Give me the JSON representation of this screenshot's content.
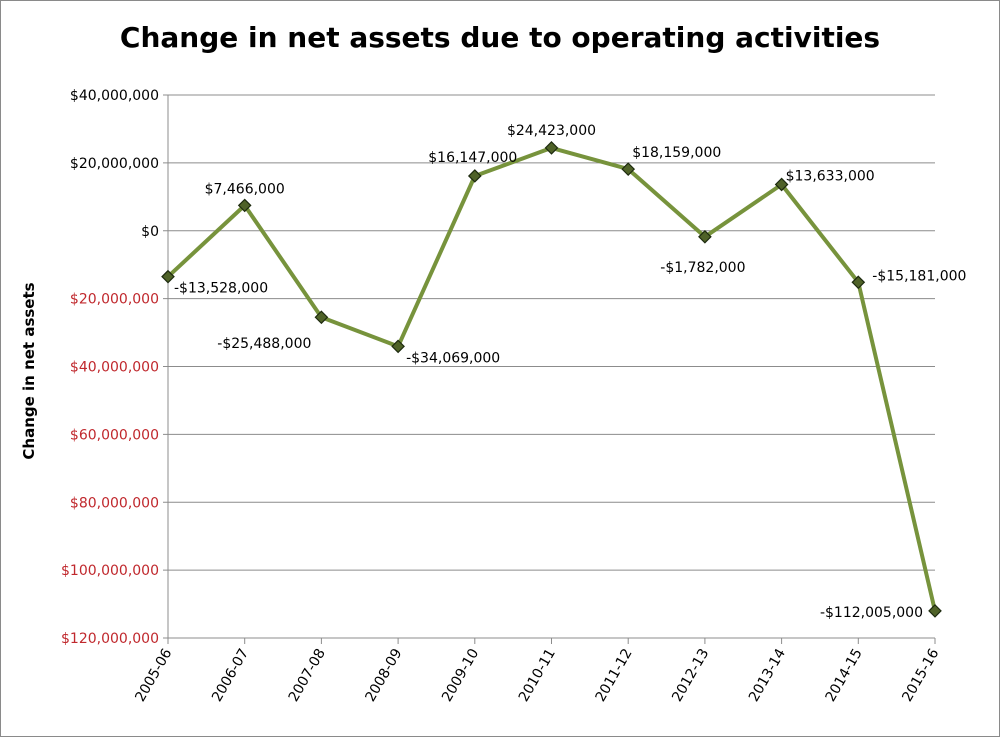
{
  "chart_data": {
    "type": "line",
    "title": "Change in net assets due to operating activities",
    "xlabel": "",
    "ylabel": "Change in net assets",
    "categories": [
      "2005-06",
      "2006-07",
      "2007-08",
      "2008-09",
      "2009-10",
      "2010-11",
      "2011-12",
      "2012-13",
      "2013-14",
      "2014-15",
      "2015-16"
    ],
    "series": [
      {
        "values": [
          -13528000,
          7466000,
          -25488000,
          -34069000,
          16147000,
          24423000,
          18159000,
          -1782000,
          13633000,
          -15181000,
          -112005000
        ],
        "data_labels": [
          "-$13,528,000",
          "$7,466,000",
          "-$25,488,000",
          "-$34,069,000",
          "$16,147,000",
          "$24,423,000",
          "$18,159,000",
          "-$1,782,000",
          "$13,633,000",
          "-$15,181,000",
          "-$112,005,000"
        ]
      }
    ],
    "ylim": [
      -120000000,
      40000000
    ],
    "y_ticks": [
      {
        "value": 40000000,
        "label": "$40,000,000",
        "color": "#000000"
      },
      {
        "value": 20000000,
        "label": "$20,000,000",
        "color": "#000000"
      },
      {
        "value": 0,
        "label": "$0",
        "color": "#000000"
      },
      {
        "value": -20000000,
        "label": "$20,000,000",
        "color": "#c0282d"
      },
      {
        "value": -40000000,
        "label": "$40,000,000",
        "color": "#c0282d"
      },
      {
        "value": -60000000,
        "label": "$60,000,000",
        "color": "#c0282d"
      },
      {
        "value": -80000000,
        "label": "$80,000,000",
        "color": "#c0282d"
      },
      {
        "value": -100000000,
        "label": "$100,000,000",
        "color": "#c0282d"
      },
      {
        "value": -120000000,
        "label": "$120,000,000",
        "color": "#c0282d"
      }
    ],
    "grid": true,
    "legend": "none",
    "colors": {
      "line": "#77933c",
      "marker_fill": "#4f6228",
      "marker_stroke": "#1d2a0f",
      "gridline": "#8c8c8c",
      "negative_tick": "#c0282d"
    }
  }
}
